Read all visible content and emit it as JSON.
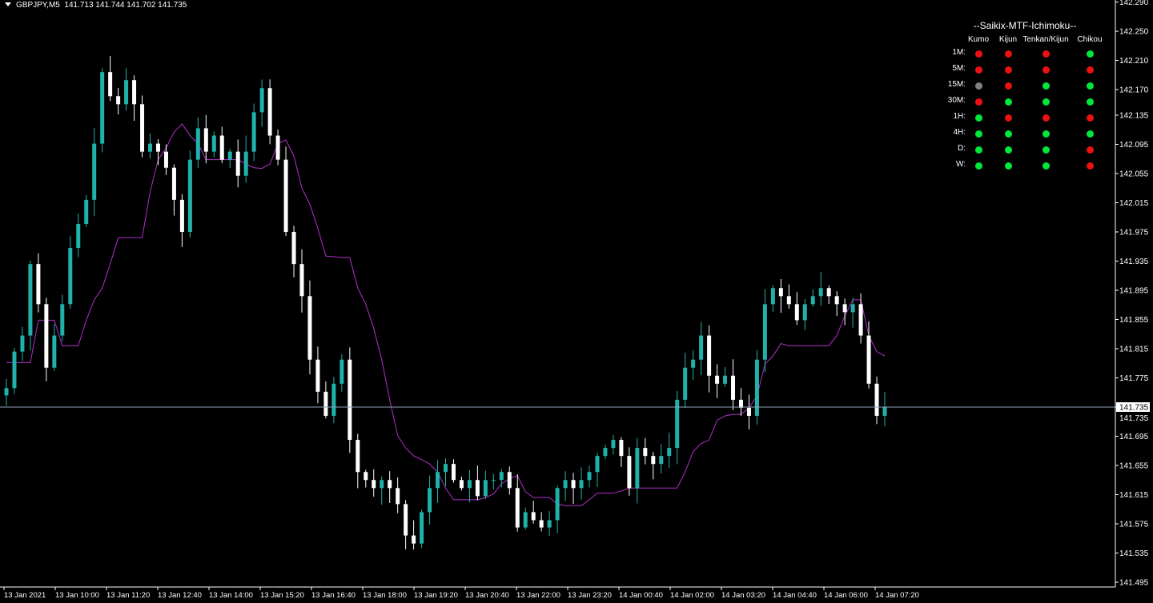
{
  "header": {
    "symbol": "GBPJPY,M5",
    "ohlc": "141.713 141.744 141.702 141.735"
  },
  "colors": {
    "bull": "#20b2aa",
    "bear": "#ffffff",
    "kijun": "#b030c8",
    "bid_line": "#8fa3b8",
    "axis": "#ffffff",
    "green": "#00e83a",
    "red": "#ee1111",
    "gray": "#808080"
  },
  "panel": {
    "title": "--Saikix-MTF-Ichimoku--",
    "columns": [
      "Kumo",
      "Kijun",
      "Tenkan/Kijun",
      "Chikou"
    ],
    "rows": [
      {
        "label": "1M:",
        "signals": [
          "red",
          "red",
          "red",
          "green"
        ]
      },
      {
        "label": "5M:",
        "signals": [
          "red",
          "red",
          "red",
          "red"
        ]
      },
      {
        "label": "15M:",
        "signals": [
          "gray",
          "red",
          "green",
          "green"
        ]
      },
      {
        "label": "30M:",
        "signals": [
          "red",
          "green",
          "green",
          "green"
        ]
      },
      {
        "label": "1H:",
        "signals": [
          "green",
          "red",
          "red",
          "red"
        ]
      },
      {
        "label": "4H:",
        "signals": [
          "green",
          "green",
          "green",
          "green"
        ]
      },
      {
        "label": "D:",
        "signals": [
          "green",
          "green",
          "green",
          "red"
        ]
      },
      {
        "label": "W:",
        "signals": [
          "green",
          "green",
          "green",
          "red"
        ]
      }
    ]
  },
  "chart_data": {
    "type": "candlestick",
    "symbol": "GBPJPY",
    "timeframe": "M5",
    "ylim": [
      141.475,
      142.29
    ],
    "price_ticks": [
      "142.290",
      "142.250",
      "142.210",
      "142.170",
      "142.135",
      "142.095",
      "142.055",
      "142.015",
      "141.975",
      "141.935",
      "141.895",
      "141.855",
      "141.815",
      "141.775",
      "141.735",
      "141.695",
      "141.655",
      "141.615",
      "141.575",
      "141.535",
      "141.495"
    ],
    "time_ticks": [
      "13 Jan 2021",
      "13 Jan 10:00",
      "13 Jan 11:20",
      "13 Jan 12:40",
      "13 Jan 14:00",
      "13 Jan 15:20",
      "13 Jan 16:40",
      "13 Jan 18:00",
      "13 Jan 19:20",
      "13 Jan 20:40",
      "13 Jan 22:00",
      "13 Jan 23:20",
      "14 Jan 00:40",
      "14 Jan 02:00",
      "14 Jan 03:20",
      "14 Jan 04:40",
      "14 Jan 06:00",
      "14 Jan 07:20"
    ],
    "current_price": 141.735,
    "current_price_label": "141.735",
    "closes": [
      141.761,
      141.811,
      141.833,
      141.931,
      141.876,
      141.789,
      141.833,
      141.876,
      141.953,
      141.986,
      142.019,
      142.096,
      142.194,
      142.161,
      142.15,
      142.183,
      142.15,
      142.085,
      142.096,
      142.085,
      142.063,
      142.019,
      141.975,
      142.074,
      142.117,
      142.085,
      142.107,
      142.074,
      142.085,
      142.052,
      142.085,
      142.139,
      142.172,
      142.107,
      142.074,
      141.975,
      141.931,
      141.887,
      141.8,
      141.756,
      141.723,
      141.767,
      141.8,
      141.69,
      141.646,
      141.635,
      141.624,
      141.635,
      141.624,
      141.602,
      141.559,
      141.548,
      141.591,
      141.624,
      141.646,
      141.657,
      141.635,
      141.624,
      141.635,
      141.613,
      141.635,
      141.635,
      141.646,
      141.624,
      141.57,
      141.591,
      141.58,
      141.57,
      141.58,
      141.624,
      141.635,
      141.624,
      141.635,
      141.646,
      141.668,
      141.679,
      141.69,
      141.668,
      141.624,
      141.679,
      141.668,
      141.657,
      141.668,
      141.679,
      141.745,
      141.789,
      141.8,
      141.833,
      141.778,
      141.767,
      141.778,
      141.745,
      141.734,
      141.723,
      141.8,
      141.876,
      141.898,
      141.887,
      141.876,
      141.854,
      141.876,
      141.887,
      141.898,
      141.887,
      141.876,
      141.865,
      141.876,
      141.833,
      141.767,
      141.723,
      141.735
    ],
    "kijun": [
      141.796,
      141.796,
      141.796,
      141.796,
      141.854,
      141.854,
      141.854,
      141.819,
      141.819,
      141.819,
      141.854,
      141.882,
      141.898,
      141.931,
      141.967,
      141.967,
      141.967,
      141.967,
      142.03,
      142.074,
      142.09,
      142.112,
      142.123,
      142.107,
      142.096,
      142.074,
      142.074,
      142.074,
      142.074,
      142.074,
      142.068,
      142.063,
      142.062,
      142.068,
      142.096,
      142.101,
      142.079,
      142.035,
      142.013,
      141.98,
      141.942,
      141.941,
      141.94,
      141.94,
      141.898,
      141.876,
      141.843,
      141.8,
      141.745,
      141.696,
      141.679,
      141.668,
      141.663,
      141.657,
      141.646,
      141.624,
      141.608,
      141.608,
      141.608,
      141.608,
      141.611,
      141.616,
      141.63,
      141.637,
      141.641,
      141.619,
      141.611,
      141.611,
      141.611,
      141.602,
      141.6,
      141.6,
      141.6,
      141.608,
      141.617,
      141.617,
      141.617,
      141.62,
      141.624,
      141.624,
      141.624,
      141.624,
      141.624,
      141.624,
      141.624,
      141.646,
      141.674,
      141.685,
      141.69,
      141.717,
      141.723,
      141.725,
      141.725,
      141.734,
      141.75,
      141.794,
      141.805,
      141.822,
      141.819,
      141.819,
      141.819,
      141.819,
      141.819,
      141.819,
      141.833,
      141.86,
      141.882,
      141.882,
      141.833,
      141.811,
      141.805
    ],
    "grid": false
  }
}
